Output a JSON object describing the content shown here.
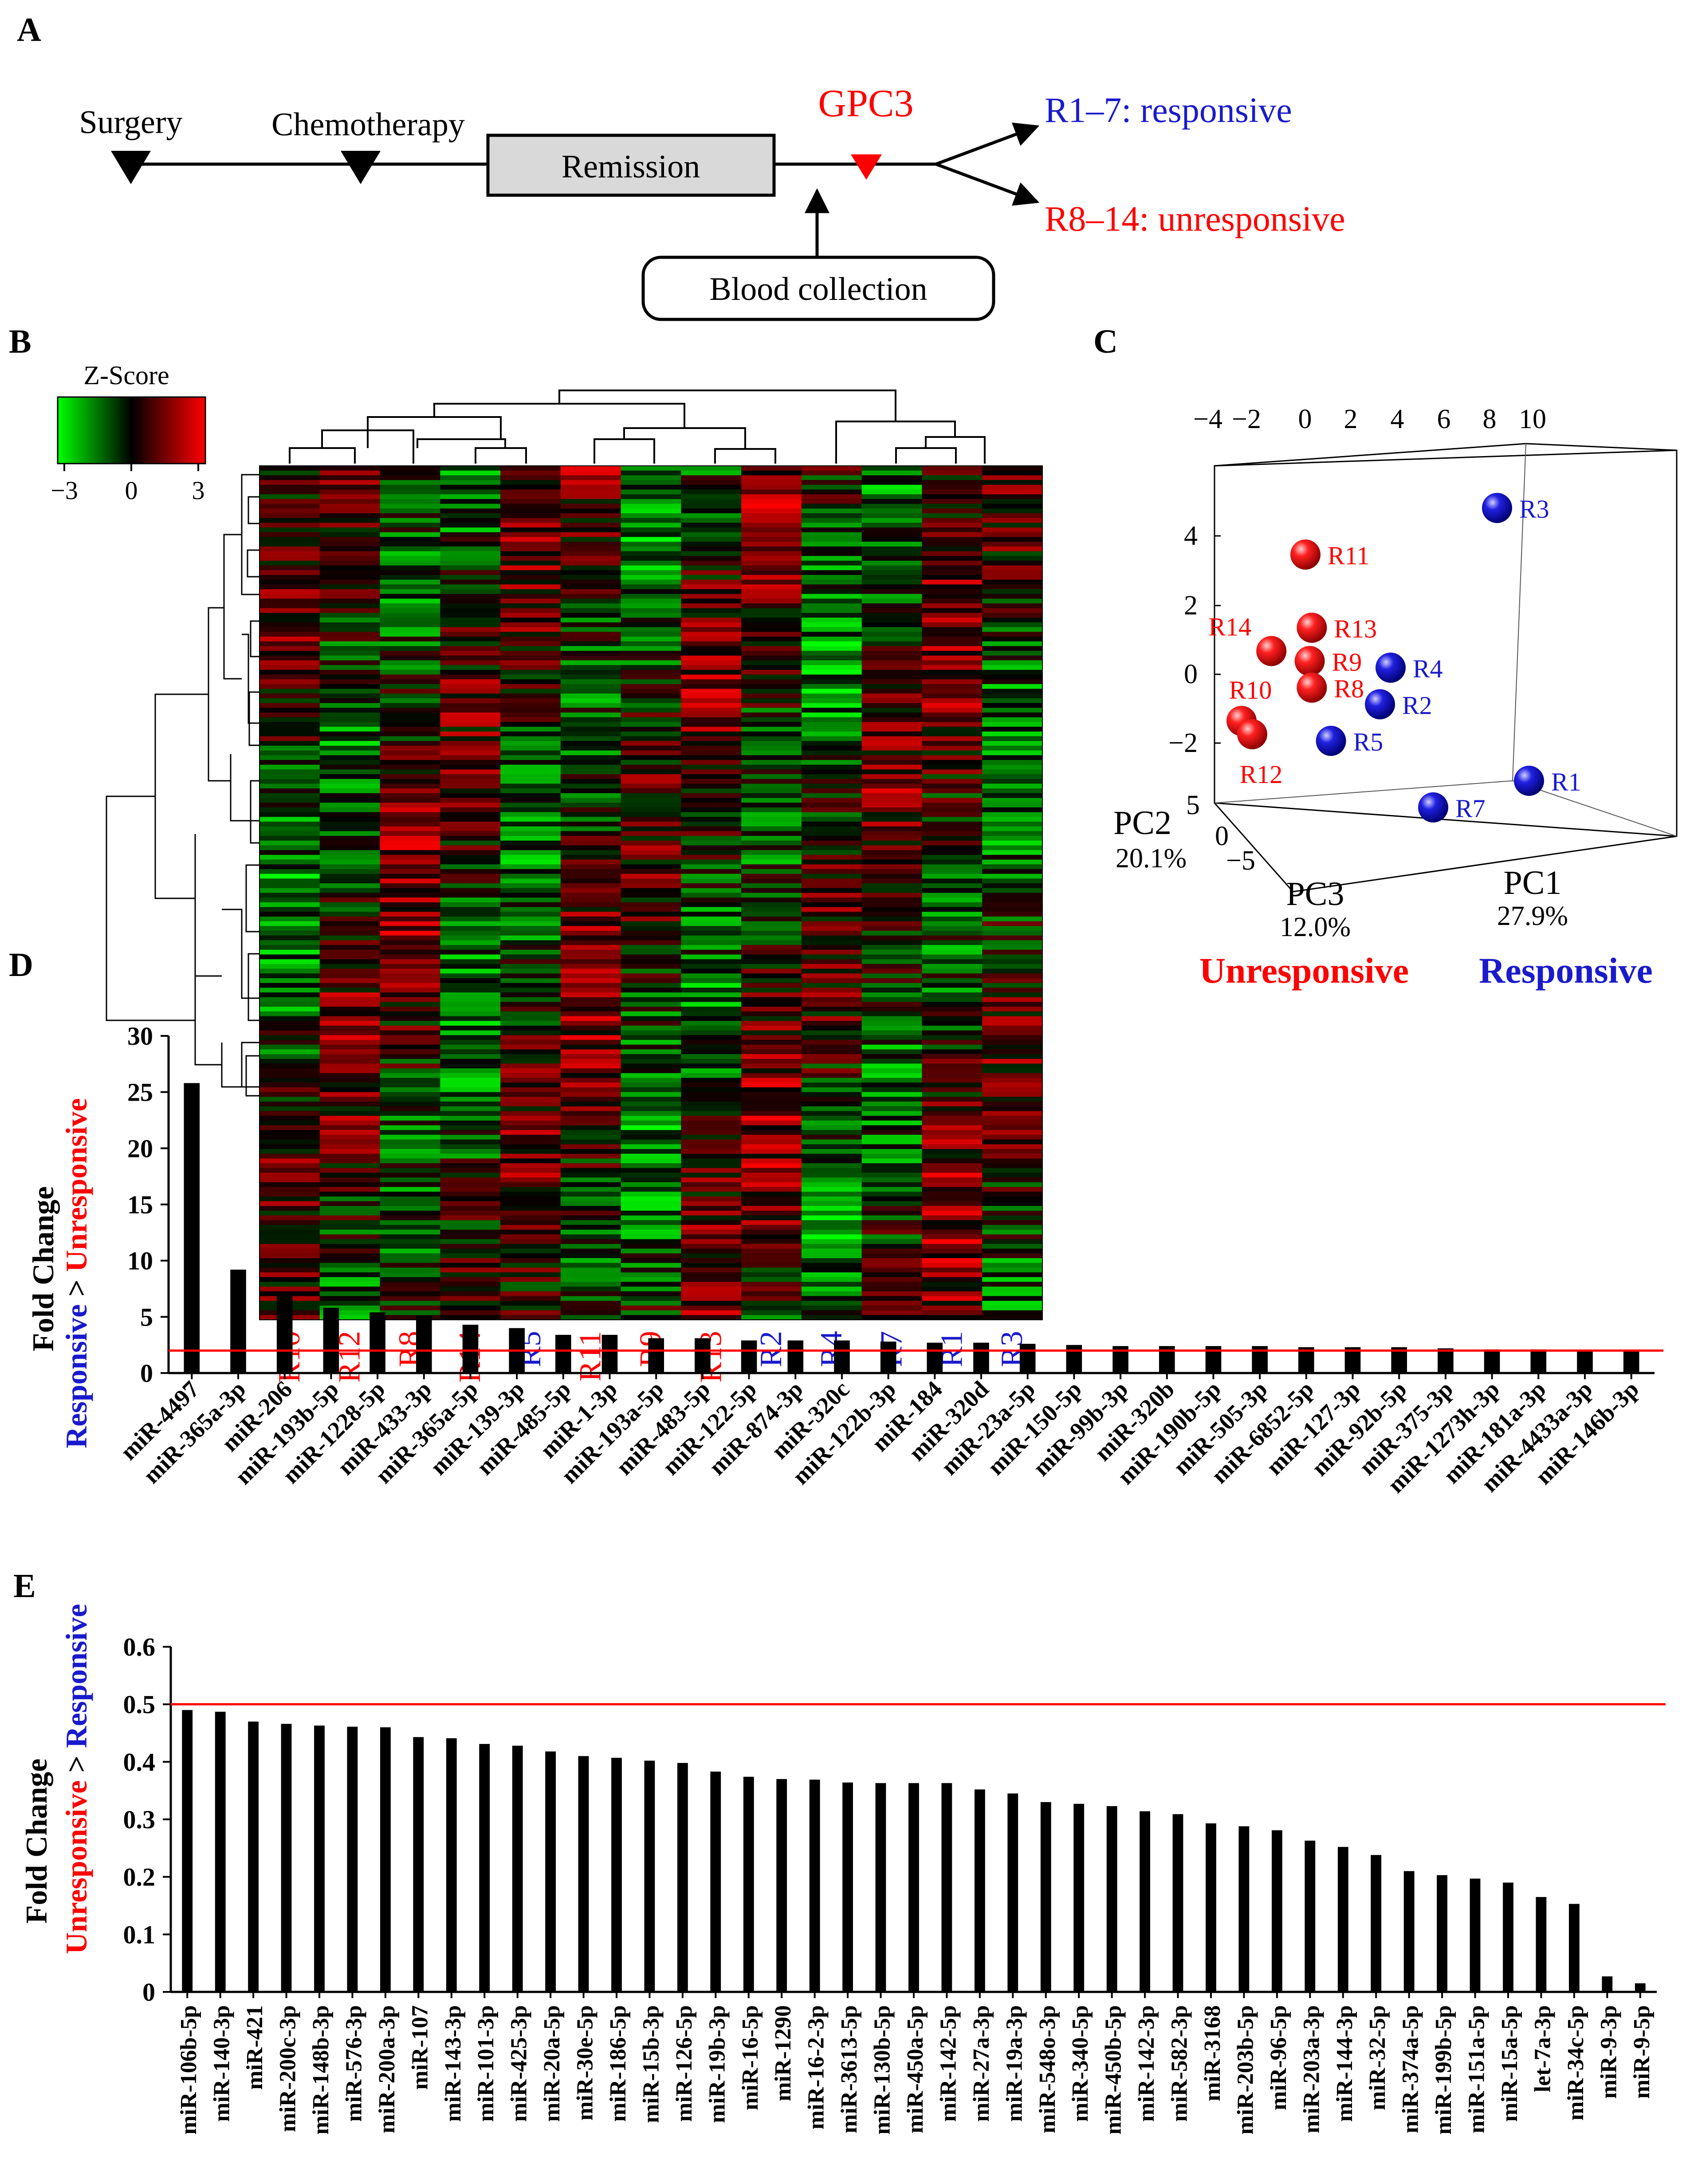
{
  "colors": {
    "red": "#ff0000",
    "blue": "#1a1acc",
    "black": "#000000",
    "remission_fill": "#d9d9d9",
    "sphere_red": "#e01010",
    "sphere_blue": "#1010c8",
    "heat_low": "#00ff00",
    "heat_mid": "#000000",
    "heat_high": "#ff0000"
  },
  "panel_letters": {
    "a": "A",
    "b": "B",
    "c": "C",
    "d": "D",
    "e": "E"
  },
  "panel_a": {
    "surgery": "Surgery",
    "chemotherapy": "Chemotherapy",
    "remission": "Remission",
    "gpc3": "GPC3",
    "blood_collection": "Blood collection",
    "responsive": "R1–7: responsive",
    "unresponsive": "R8–14: unresponsive"
  },
  "chart_data": [
    {
      "type": "heatmap",
      "panel": "B",
      "legend_title": "Z-Score",
      "legend_ticks": [
        "−3",
        "0",
        "3"
      ],
      "legend_range": [
        -3,
        3
      ],
      "columns": [
        "R10",
        "R12",
        "R8",
        "R14",
        "R5",
        "R11",
        "R9",
        "R13",
        "R2",
        "R4",
        "R7",
        "R1",
        "R3"
      ],
      "column_groups": [
        "unresponsive",
        "unresponsive",
        "unresponsive",
        "unresponsive",
        "responsive",
        "unresponsive",
        "unresponsive",
        "unresponsive",
        "responsive",
        "responsive",
        "responsive",
        "responsive",
        "responsive"
      ]
    },
    {
      "type": "scatter",
      "panel": "C",
      "projection": "3d",
      "x_ticks": [
        "−4",
        "−2",
        "0",
        "2",
        "4",
        "6",
        "8",
        "10"
      ],
      "y_ticks": [
        "4",
        "2",
        "0",
        "−2"
      ],
      "z_ticks": [
        "5",
        "0",
        "−5"
      ],
      "axis_labels": {
        "pc1": "PC1",
        "pc1_pct": "27.9%",
        "pc2": "PC2",
        "pc2_pct": "20.1%",
        "pc3": "PC3",
        "pc3_pct": "12.0%"
      },
      "legend": {
        "unresponsive": "Unresponsive",
        "responsive": "Responsive"
      },
      "points": [
        {
          "label": "R3",
          "group": "responsive",
          "x": 9.0,
          "y": 5.0
        },
        {
          "label": "R11",
          "group": "unresponsive",
          "x": 0.0,
          "y": 3.6
        },
        {
          "label": "R13",
          "group": "unresponsive",
          "x": 0.3,
          "y": 1.4
        },
        {
          "label": "R14",
          "group": "unresponsive",
          "x": -1.6,
          "y": 0.7
        },
        {
          "label": "R9",
          "group": "unresponsive",
          "x": 0.2,
          "y": 0.4
        },
        {
          "label": "R4",
          "group": "responsive",
          "x": 4.0,
          "y": 0.2
        },
        {
          "label": "R8",
          "group": "unresponsive",
          "x": 0.3,
          "y": -0.4
        },
        {
          "label": "R2",
          "group": "responsive",
          "x": 3.5,
          "y": -0.9
        },
        {
          "label": "R10",
          "group": "unresponsive",
          "x": -3.0,
          "y": -1.4
        },
        {
          "label": "R12",
          "group": "unresponsive",
          "x": -2.5,
          "y": -1.8
        },
        {
          "label": "R5",
          "group": "responsive",
          "x": 1.2,
          "y": -2.0
        },
        {
          "label": "R1",
          "group": "responsive",
          "x": 10.5,
          "y": -3.2
        },
        {
          "label": "R7",
          "group": "responsive",
          "x": 6.0,
          "y": -4.0
        }
      ]
    },
    {
      "type": "bar",
      "panel": "D",
      "ylabel": "Fold Change",
      "ylabel_sub": {
        "first": "Responsive",
        "gt": " > ",
        "second": "Unresponsive"
      },
      "ylim": [
        0,
        30
      ],
      "yticks": [
        0,
        5,
        10,
        15,
        20,
        25,
        30
      ],
      "threshold": 2,
      "categories": [
        "miR-4497",
        "miR-365a-3p",
        "miR-206",
        "miR-193b-5p",
        "miR-1228-5p",
        "miR-433-3p",
        "miR-365a-5p",
        "miR-139-3p",
        "miR-485-5p",
        "miR-1-3p",
        "miR-193a-5p",
        "miR-483-5p",
        "miR-122-5p",
        "miR-874-3p",
        "miR-320c",
        "miR-122b-3p",
        "miR-184",
        "miR-320d",
        "miR-23a-5p",
        "miR-150-5p",
        "miR-99b-3p",
        "miR-320b",
        "miR-190b-5p",
        "miR-505-3p",
        "miR-6852-5p",
        "miR-127-3p",
        "miR-92b-5p",
        "miR-375-3p",
        "miR-1273h-3p",
        "miR-181a-3p",
        "miR-4433a-3p",
        "miR-146b-3p"
      ],
      "values": [
        25.8,
        9.2,
        7.2,
        5.8,
        5.4,
        5.1,
        4.3,
        4.0,
        3.4,
        3.4,
        3.1,
        3.1,
        2.9,
        2.9,
        2.9,
        2.8,
        2.7,
        2.7,
        2.6,
        2.5,
        2.4,
        2.4,
        2.4,
        2.4,
        2.3,
        2.3,
        2.3,
        2.2,
        2.1,
        2.1,
        2.0,
        2.0
      ]
    },
    {
      "type": "bar",
      "panel": "E",
      "ylabel": "Fold Change",
      "ylabel_sub": {
        "first": "Unresponsive",
        "gt": " > ",
        "second": "Responsive"
      },
      "ylim": [
        0,
        0.6
      ],
      "yticks": [
        "0",
        "0.1",
        "0.2",
        "0.3",
        "0.4",
        "0.5",
        "0.6"
      ],
      "threshold": 0.5,
      "categories": [
        "miR-106b-5p",
        "miR-140-3p",
        "miR-421",
        "miR-200c-3p",
        "miR-148b-3p",
        "miR-576-3p",
        "miR-200a-3p",
        "miR-107",
        "miR-143-3p",
        "miR-101-3p",
        "miR-425-3p",
        "miR-20a-5p",
        "miR-30e-5p",
        "miR-186-5p",
        "miR-15b-3p",
        "miR-126-5p",
        "miR-19b-3p",
        "miR-16-5p",
        "miR-1290",
        "miR-16-2-3p",
        "miR-3613-5p",
        "miR-130b-5p",
        "miR-450a-5p",
        "miR-142-5p",
        "miR-27a-3p",
        "miR-19a-3p",
        "miR-548o-3p",
        "miR-340-5p",
        "miR-450b-5p",
        "miR-142-3p",
        "miR-582-3p",
        "miR-3168",
        "miR-203b-5p",
        "miR-96-5p",
        "miR-203a-3p",
        "miR-144-3p",
        "miR-32-5p",
        "miR-374a-5p",
        "miR-199b-5p",
        "miR-151a-5p",
        "miR-15a-5p",
        "let-7a-3p",
        "miR-34c-5p",
        "miR-9-3p",
        "miR-9-5p"
      ],
      "values": [
        0.49,
        0.487,
        0.47,
        0.466,
        0.463,
        0.461,
        0.46,
        0.443,
        0.441,
        0.431,
        0.428,
        0.418,
        0.41,
        0.407,
        0.402,
        0.398,
        0.383,
        0.374,
        0.37,
        0.369,
        0.364,
        0.363,
        0.363,
        0.363,
        0.352,
        0.345,
        0.33,
        0.327,
        0.323,
        0.314,
        0.309,
        0.293,
        0.288,
        0.281,
        0.263,
        0.252,
        0.238,
        0.21,
        0.203,
        0.197,
        0.19,
        0.165,
        0.153,
        0.027,
        0.015
      ]
    }
  ]
}
